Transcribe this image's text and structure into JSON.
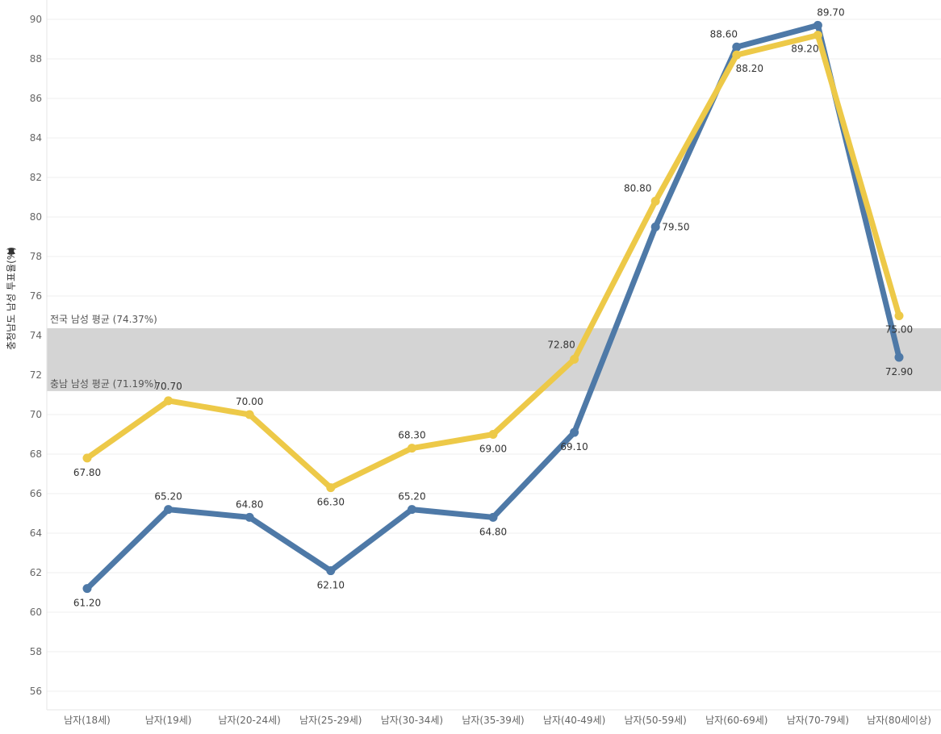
{
  "chart_data": {
    "type": "line",
    "ylabel": "충청남도 남성 투표율(%)",
    "ylim": [
      55,
      91
    ],
    "yticks": [
      56,
      58,
      60,
      62,
      64,
      66,
      68,
      70,
      72,
      74,
      76,
      78,
      80,
      82,
      84,
      86,
      88,
      90
    ],
    "categories": [
      "남자(18세)",
      "남자(19세)",
      "남자(20-24세)",
      "남자(25-29세)",
      "남자(30-34세)",
      "남자(35-39세)",
      "남자(40-49세)",
      "남자(50-59세)",
      "남자(60-69세)",
      "남자(70-79세)",
      "남자(80세이상)"
    ],
    "series": [
      {
        "color": "#4e79a7",
        "values": [
          61.2,
          65.2,
          64.8,
          62.1,
          65.2,
          64.8,
          69.1,
          79.5,
          88.6,
          89.7,
          72.9
        ],
        "labels": [
          "61.20",
          "65.20",
          "64.80",
          "62.10",
          "65.20",
          "64.80",
          "69.10",
          "79.50",
          "88.60",
          "89.70",
          "72.90"
        ]
      },
      {
        "color": "#edc948",
        "values": [
          67.8,
          70.7,
          70.0,
          66.3,
          68.3,
          69.0,
          72.8,
          80.8,
          88.2,
          89.2,
          75.0
        ],
        "labels": [
          "67.80",
          "70.70",
          "70.00",
          "66.30",
          "68.30",
          "69.00",
          "72.80",
          "80.80",
          "88.20",
          "89.20",
          "75.00"
        ]
      }
    ],
    "reference_band": {
      "from": 71.19,
      "to": 74.37,
      "color": "#d4d4d4",
      "upper_label": "전국 남성 평균 (74.37%)",
      "lower_label": "충남 남성 평균 (71.19%)"
    },
    "grid": true
  }
}
